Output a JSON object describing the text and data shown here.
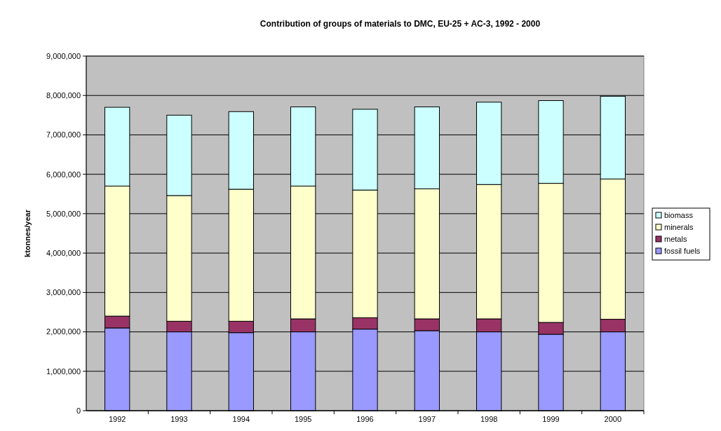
{
  "chart_data": {
    "type": "bar",
    "title": "Contribution of groups of materials to DMC, EU-25 + AC-3, 1992 - 2000",
    "ylabel": "ktonnes/year",
    "categories": [
      "1992",
      "1993",
      "1994",
      "1995",
      "1996",
      "1997",
      "1998",
      "1999",
      "2000"
    ],
    "stacked": true,
    "series": [
      {
        "name": "fossil fuels",
        "color": "#9999ff",
        "values": [
          2100000,
          2000000,
          1980000,
          2000000,
          2070000,
          2030000,
          2000000,
          1940000,
          2000000
        ]
      },
      {
        "name": "metals",
        "color": "#993366",
        "values": [
          300000,
          270000,
          290000,
          330000,
          290000,
          300000,
          330000,
          300000,
          320000
        ]
      },
      {
        "name": "minerals",
        "color": "#ffffcc",
        "values": [
          3300000,
          3190000,
          3350000,
          3370000,
          3240000,
          3300000,
          3410000,
          3530000,
          3560000
        ]
      },
      {
        "name": "biomass",
        "color": "#ccffff",
        "values": [
          2000000,
          2040000,
          1970000,
          2010000,
          2050000,
          2080000,
          2090000,
          2100000,
          2100000
        ]
      }
    ],
    "ylim": [
      0,
      9000000
    ],
    "yticks": [
      {
        "value": 0,
        "label": "0"
      },
      {
        "value": 1000000,
        "label": "1,000,000"
      },
      {
        "value": 2000000,
        "label": "2,000,000"
      },
      {
        "value": 3000000,
        "label": "3,000,000"
      },
      {
        "value": 4000000,
        "label": "4,000,000"
      },
      {
        "value": 5000000,
        "label": "5,000,000"
      },
      {
        "value": 6000000,
        "label": "6,000,000"
      },
      {
        "value": 7000000,
        "label": "7,000,000"
      },
      {
        "value": 8000000,
        "label": "8,000,000"
      },
      {
        "value": 9000000,
        "label": "9,000,000"
      }
    ],
    "grid": "y",
    "legend": "right"
  }
}
